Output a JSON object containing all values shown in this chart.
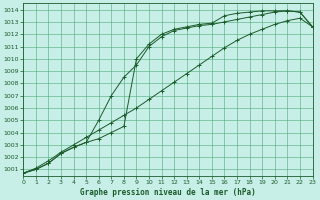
{
  "title": "Graphe pression niveau de la mer (hPa)",
  "bg_color": "#c8eee8",
  "grid_color": "#4daa77",
  "line_color": "#1a5c2a",
  "xlim": [
    0,
    23
  ],
  "ylim": [
    1000.5,
    1014.5
  ],
  "xticks": [
    0,
    1,
    2,
    3,
    4,
    5,
    6,
    7,
    8,
    9,
    10,
    11,
    12,
    13,
    14,
    15,
    16,
    17,
    18,
    19,
    20,
    21,
    22,
    23
  ],
  "yticks": [
    1001,
    1002,
    1003,
    1004,
    1005,
    1006,
    1007,
    1008,
    1009,
    1010,
    1011,
    1012,
    1013,
    1014
  ],
  "line1_x": [
    0,
    1,
    2,
    3,
    4,
    5,
    6,
    7,
    8,
    9,
    10,
    11,
    12,
    13,
    14,
    15,
    16,
    17,
    18,
    19,
    20,
    21,
    22,
    23
  ],
  "line1_y": [
    1000.7,
    1001.0,
    1001.5,
    1002.3,
    1002.8,
    1003.2,
    1003.5,
    1004.0,
    1004.5,
    1010.0,
    1011.2,
    1012.0,
    1012.4,
    1012.6,
    1012.8,
    1012.9,
    1013.5,
    1013.7,
    1013.8,
    1013.9,
    1013.9,
    1013.9,
    1013.8,
    1012.6
  ],
  "line2_x": [
    0,
    1,
    2,
    3,
    4,
    5,
    6,
    7,
    8,
    9,
    10,
    11,
    12,
    13,
    14,
    15,
    16,
    17,
    18,
    19,
    20,
    21,
    22,
    23
  ],
  "line2_y": [
    1000.7,
    1001.0,
    1001.5,
    1002.3,
    1002.8,
    1003.2,
    1005.0,
    1007.0,
    1008.5,
    1009.5,
    1011.0,
    1011.8,
    1012.3,
    1012.5,
    1012.7,
    1012.8,
    1013.0,
    1013.2,
    1013.4,
    1013.6,
    1013.8,
    1013.9,
    1013.8,
    1012.6
  ],
  "line3_x": [
    0,
    1,
    2,
    3,
    4,
    5,
    6,
    7,
    8,
    9,
    10,
    11,
    12,
    13,
    14,
    15,
    16,
    17,
    18,
    19,
    20,
    21,
    22,
    23
  ],
  "line3_y": [
    1000.7,
    1001.1,
    1001.7,
    1002.4,
    1003.0,
    1003.6,
    1004.2,
    1004.8,
    1005.4,
    1006.0,
    1006.7,
    1007.4,
    1008.1,
    1008.8,
    1009.5,
    1010.2,
    1010.9,
    1011.5,
    1012.0,
    1012.4,
    1012.8,
    1013.1,
    1013.3,
    1012.6
  ]
}
